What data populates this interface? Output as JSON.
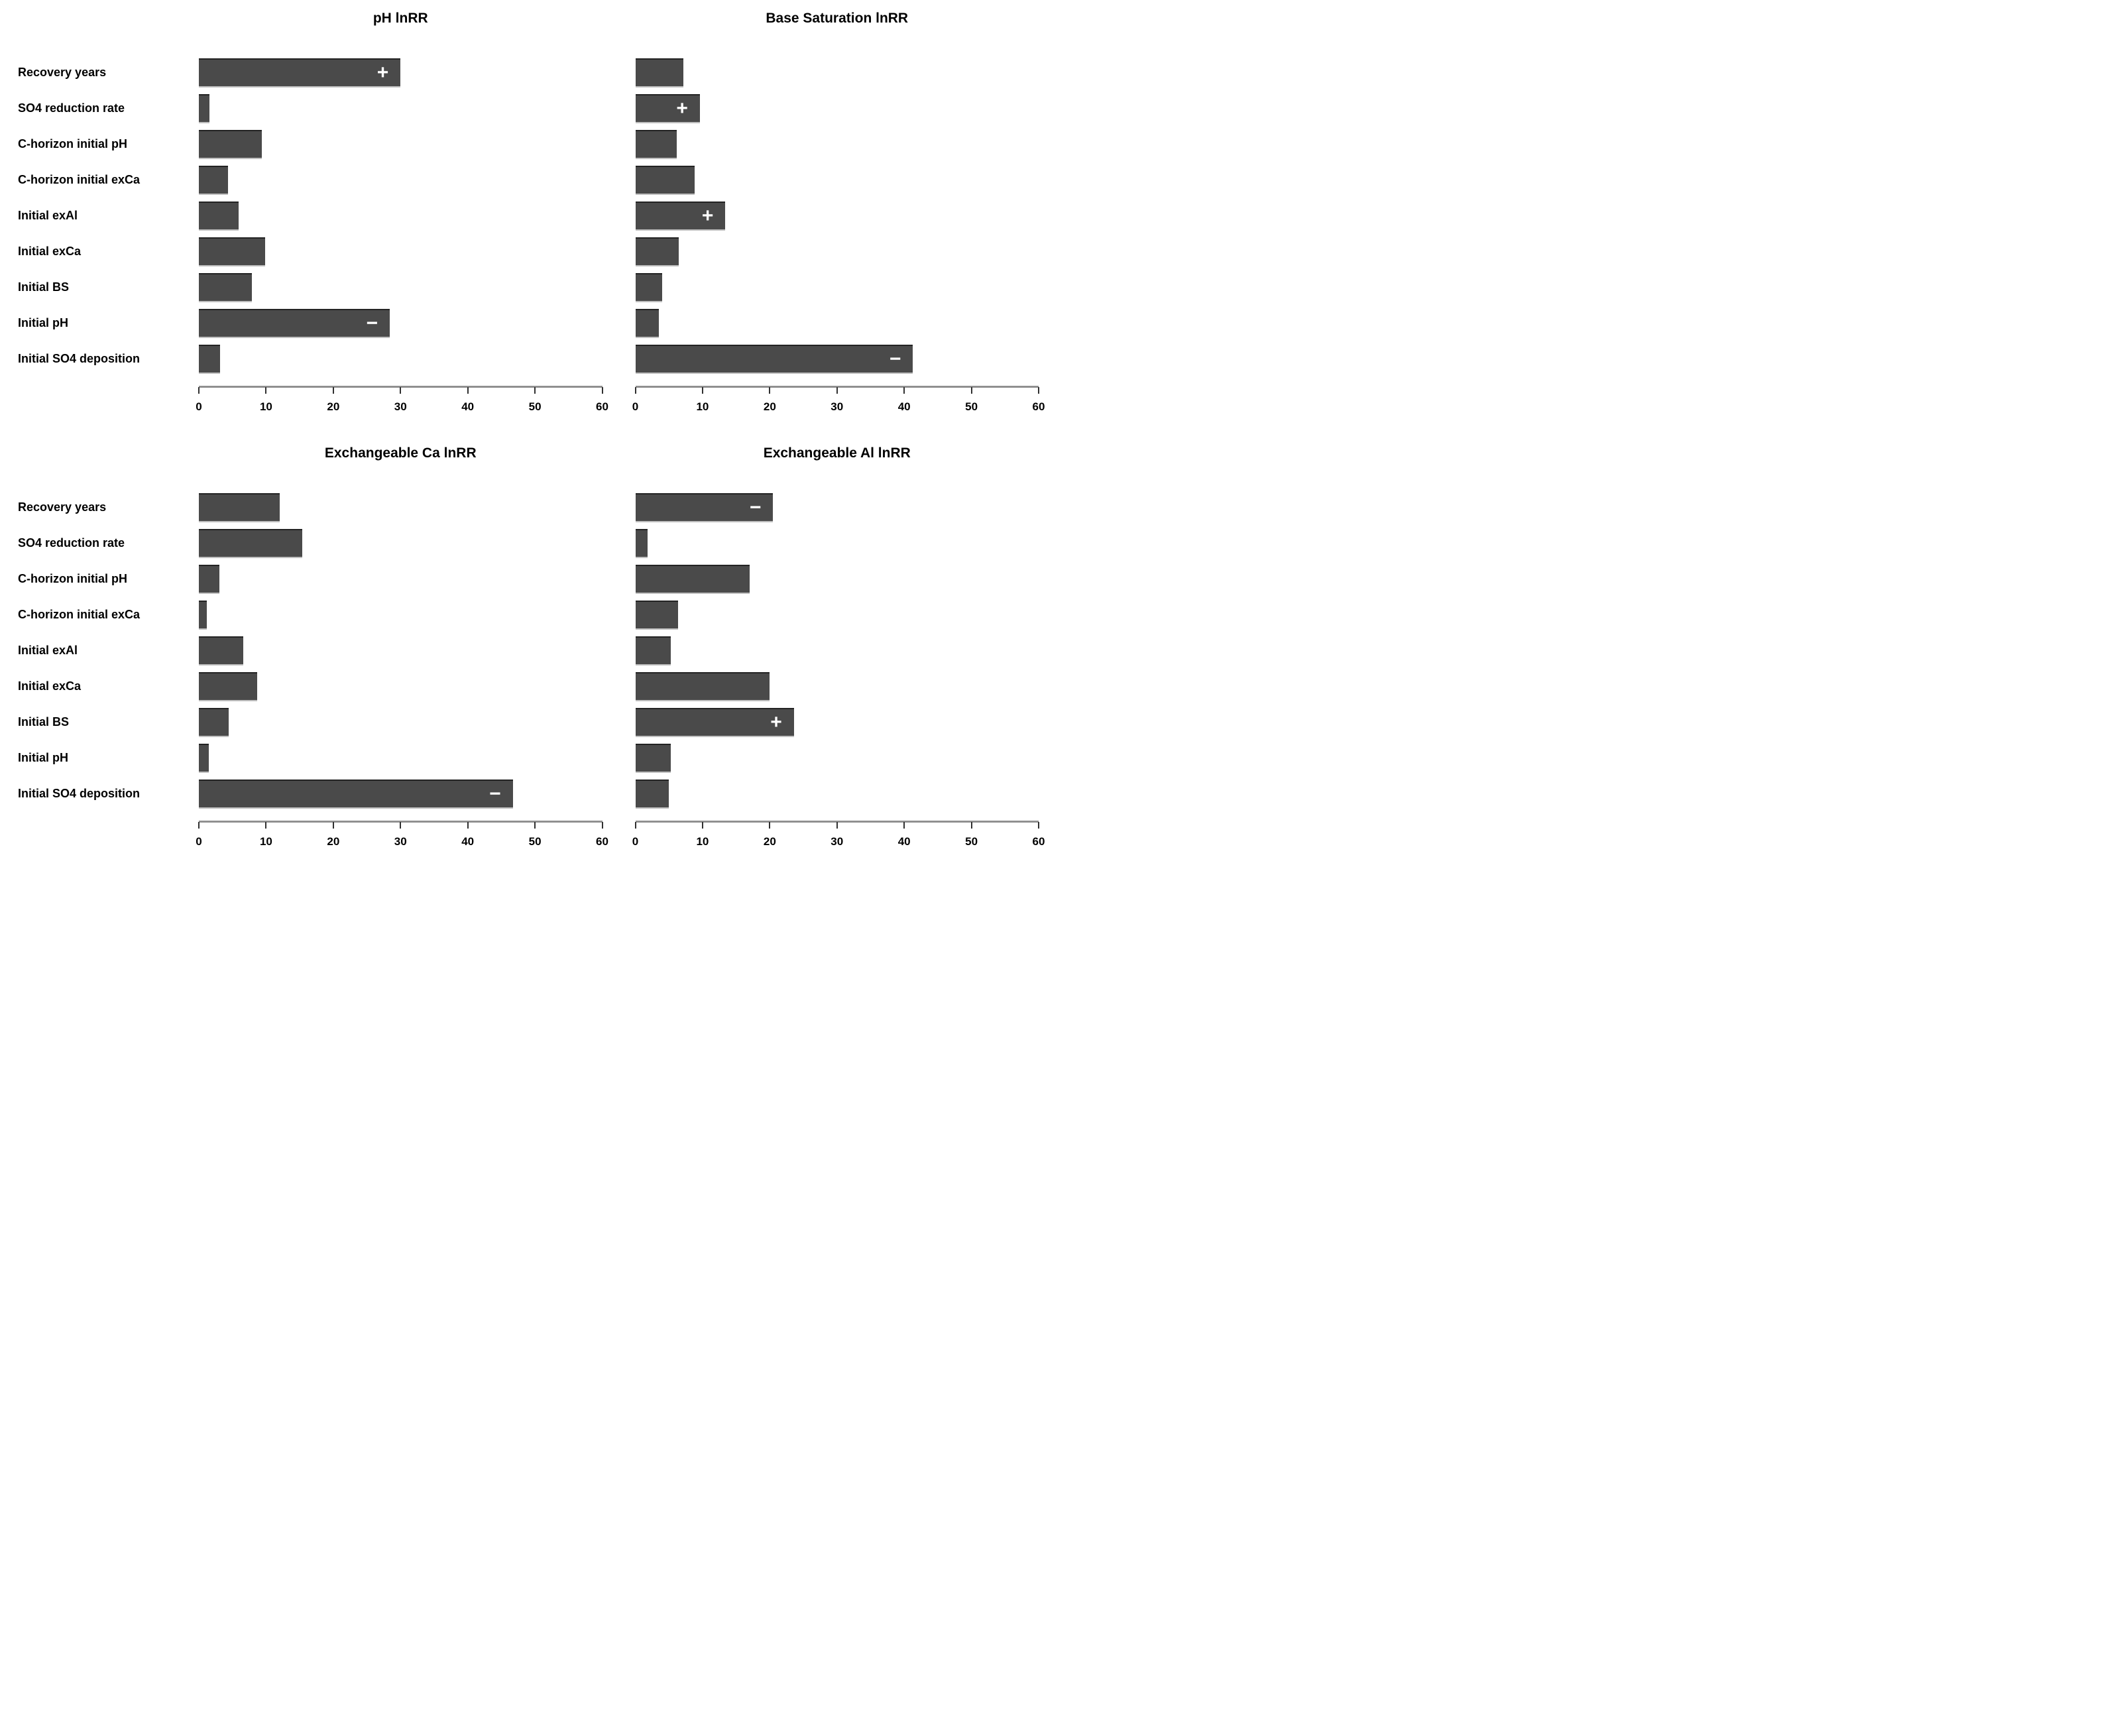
{
  "colors": {
    "bar": "#4a4a4a",
    "sign": "#ffffff",
    "axis_line": "#909090",
    "tick_mark": "#303030",
    "text": "#000000"
  },
  "categories": [
    "Recovery years",
    "SO4 reduction rate",
    "C-horizon initial pH",
    "C-horizon initial exCa",
    "Initial exAl",
    "Initial exCa",
    "Initial BS",
    "Initial pH",
    "Initial SO4 deposition"
  ],
  "chart_data": [
    {
      "type": "bar",
      "orientation": "horizontal",
      "title": "pH lnRR",
      "categories": [
        "Recovery years",
        "SO4 reduction rate",
        "C-horizon initial pH",
        "C-horizon initial exCa",
        "Initial exAl",
        "Initial exCa",
        "Initial BS",
        "Initial pH",
        "Initial SO4 deposition"
      ],
      "values": [
        30.0,
        1.6,
        9.4,
        4.3,
        5.9,
        9.9,
        7.9,
        28.4,
        3.2
      ],
      "signs": [
        "+",
        "",
        "",
        "",
        "",
        "",
        "",
        "−",
        ""
      ],
      "xlim": [
        0,
        60
      ],
      "xticks": [
        0,
        10,
        20,
        30,
        40,
        50,
        60
      ],
      "grid": false,
      "legend": false
    },
    {
      "type": "bar",
      "orientation": "horizontal",
      "title": "Base Saturation lnRR",
      "categories": [
        "Recovery years",
        "SO4 reduction rate",
        "C-horizon initial pH",
        "C-horizon initial exCa",
        "Initial exAl",
        "Initial exCa",
        "Initial BS",
        "Initial pH",
        "Initial SO4 deposition"
      ],
      "values": [
        7.1,
        9.6,
        6.2,
        8.8,
        13.4,
        6.5,
        4.0,
        3.5,
        41.3
      ],
      "signs": [
        "",
        "+",
        "",
        "",
        "+",
        "",
        "",
        "",
        "−"
      ],
      "xlim": [
        0,
        60
      ],
      "xticks": [
        0,
        10,
        20,
        30,
        40,
        50,
        60
      ],
      "grid": false,
      "legend": false
    },
    {
      "type": "bar",
      "orientation": "horizontal",
      "title": "Exchangeable Ca lnRR",
      "categories": [
        "Recovery years",
        "SO4 reduction rate",
        "C-horizon initial pH",
        "C-horizon initial exCa",
        "Initial exAl",
        "Initial exCa",
        "Initial BS",
        "Initial pH",
        "Initial SO4 deposition"
      ],
      "values": [
        12.0,
        15.4,
        3.1,
        1.2,
        6.6,
        8.7,
        4.4,
        1.5,
        46.7
      ],
      "signs": [
        "",
        "",
        "",
        "",
        "",
        "",
        "",
        "",
        "−"
      ],
      "xlim": [
        0,
        60
      ],
      "xticks": [
        0,
        10,
        20,
        30,
        40,
        50,
        60
      ],
      "grid": false,
      "legend": false
    },
    {
      "type": "bar",
      "orientation": "horizontal",
      "title": "Exchangeable Al lnRR",
      "categories": [
        "Recovery years",
        "SO4 reduction rate",
        "C-horizon initial pH",
        "C-horizon initial exCa",
        "Initial exAl",
        "Initial exCa",
        "Initial BS",
        "Initial pH",
        "Initial SO4 deposition"
      ],
      "values": [
        20.5,
        1.8,
        17.0,
        6.4,
        5.3,
        20.0,
        23.6,
        5.3,
        5.0
      ],
      "signs": [
        "−",
        "",
        "",
        "",
        "",
        "",
        "+",
        "",
        ""
      ],
      "xlim": [
        0,
        60
      ],
      "xticks": [
        0,
        10,
        20,
        30,
        40,
        50,
        60
      ],
      "grid": false,
      "legend": false
    }
  ]
}
